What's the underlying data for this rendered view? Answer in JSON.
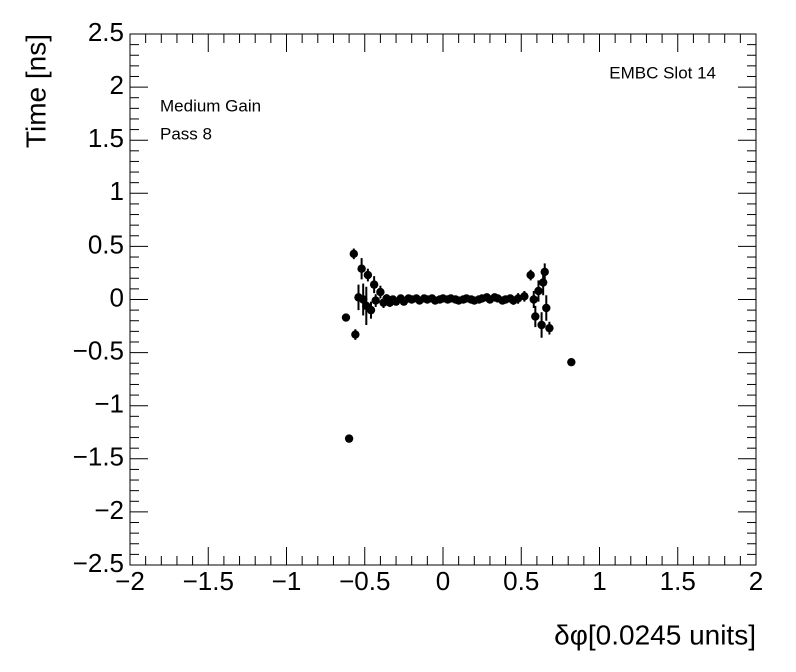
{
  "chart_data": {
    "type": "scatter",
    "x_label": "δφ[0.0245 units]",
    "y_label": "Time [ns]",
    "annotations": [
      "EMBC Slot 14",
      "Medium Gain",
      "Pass 8"
    ],
    "color": "#000000",
    "xlim": [
      -2,
      2
    ],
    "ylim": [
      -2.5,
      2.5
    ],
    "xticks": [
      {
        "value": -2,
        "label": "−2"
      },
      {
        "value": -1.5,
        "label": "−1.5"
      },
      {
        "value": -1,
        "label": "−1"
      },
      {
        "value": -0.5,
        "label": "−0.5"
      },
      0,
      0.5,
      1,
      1.5,
      2
    ],
    "yticks": [
      {
        "value": -2.5,
        "label": "−2.5"
      },
      {
        "value": -2,
        "label": "−2"
      },
      {
        "value": -1.5,
        "label": "−1.5"
      },
      {
        "value": -1,
        "label": "−1"
      },
      {
        "value": -0.5,
        "label": "−0.5"
      },
      0,
      0.5,
      1,
      1.5,
      2,
      2.5
    ],
    "x": [
      -0.62,
      -0.6,
      -0.57,
      -0.56,
      -0.54,
      -0.52,
      -0.51,
      -0.49,
      -0.48,
      -0.46,
      -0.44,
      -0.43,
      -0.4,
      -0.38,
      -0.36,
      -0.34,
      -0.32,
      -0.3,
      -0.27,
      -0.25,
      -0.22,
      -0.2,
      -0.17,
      -0.15,
      -0.12,
      -0.1,
      -0.07,
      -0.05,
      -0.02,
      0.0,
      0.03,
      0.05,
      0.08,
      0.1,
      0.13,
      0.15,
      0.18,
      0.2,
      0.23,
      0.25,
      0.28,
      0.3,
      0.33,
      0.35,
      0.38,
      0.4,
      0.43,
      0.45,
      0.48,
      0.52,
      0.56,
      0.58,
      0.59,
      0.61,
      0.63,
      0.64,
      0.65,
      0.66,
      0.68,
      0.82
    ],
    "values": [
      -0.17,
      -1.31,
      0.43,
      -0.33,
      0.02,
      0.29,
      0.0,
      -0.06,
      0.23,
      -0.1,
      0.14,
      -0.01,
      0.07,
      -0.03,
      0.01,
      -0.03,
      0.0,
      -0.02,
      0.01,
      -0.02,
      0.01,
      0.0,
      0.01,
      -0.01,
      0.01,
      0.0,
      0.01,
      -0.01,
      0.0,
      0.01,
      0.0,
      0.01,
      0.0,
      -0.01,
      0.0,
      0.01,
      0.0,
      -0.01,
      0.0,
      0.01,
      0.02,
      0.0,
      0.02,
      0.01,
      -0.01,
      0.0,
      0.01,
      -0.01,
      0.01,
      0.03,
      0.23,
      0.0,
      -0.16,
      0.08,
      -0.24,
      0.16,
      0.26,
      -0.08,
      -0.27,
      -0.59
    ],
    "yerr": [
      0,
      0,
      0.05,
      0.05,
      0.12,
      0.1,
      0.15,
      0.18,
      0.06,
      0.08,
      0.08,
      0.06,
      0.06,
      0.05,
      0.04,
      0.04,
      0.03,
      0.03,
      0.03,
      0.03,
      0.02,
      0.02,
      0.02,
      0.02,
      0.02,
      0.02,
      0.02,
      0.02,
      0.02,
      0.02,
      0.02,
      0.02,
      0.02,
      0.02,
      0.02,
      0.02,
      0.02,
      0.02,
      0.02,
      0.02,
      0.03,
      0.03,
      0.03,
      0.03,
      0.03,
      0.03,
      0.03,
      0.04,
      0.05,
      0.05,
      0.05,
      0.08,
      0.1,
      0.1,
      0.12,
      0.12,
      0.08,
      0.12,
      0.06,
      0
    ]
  }
}
